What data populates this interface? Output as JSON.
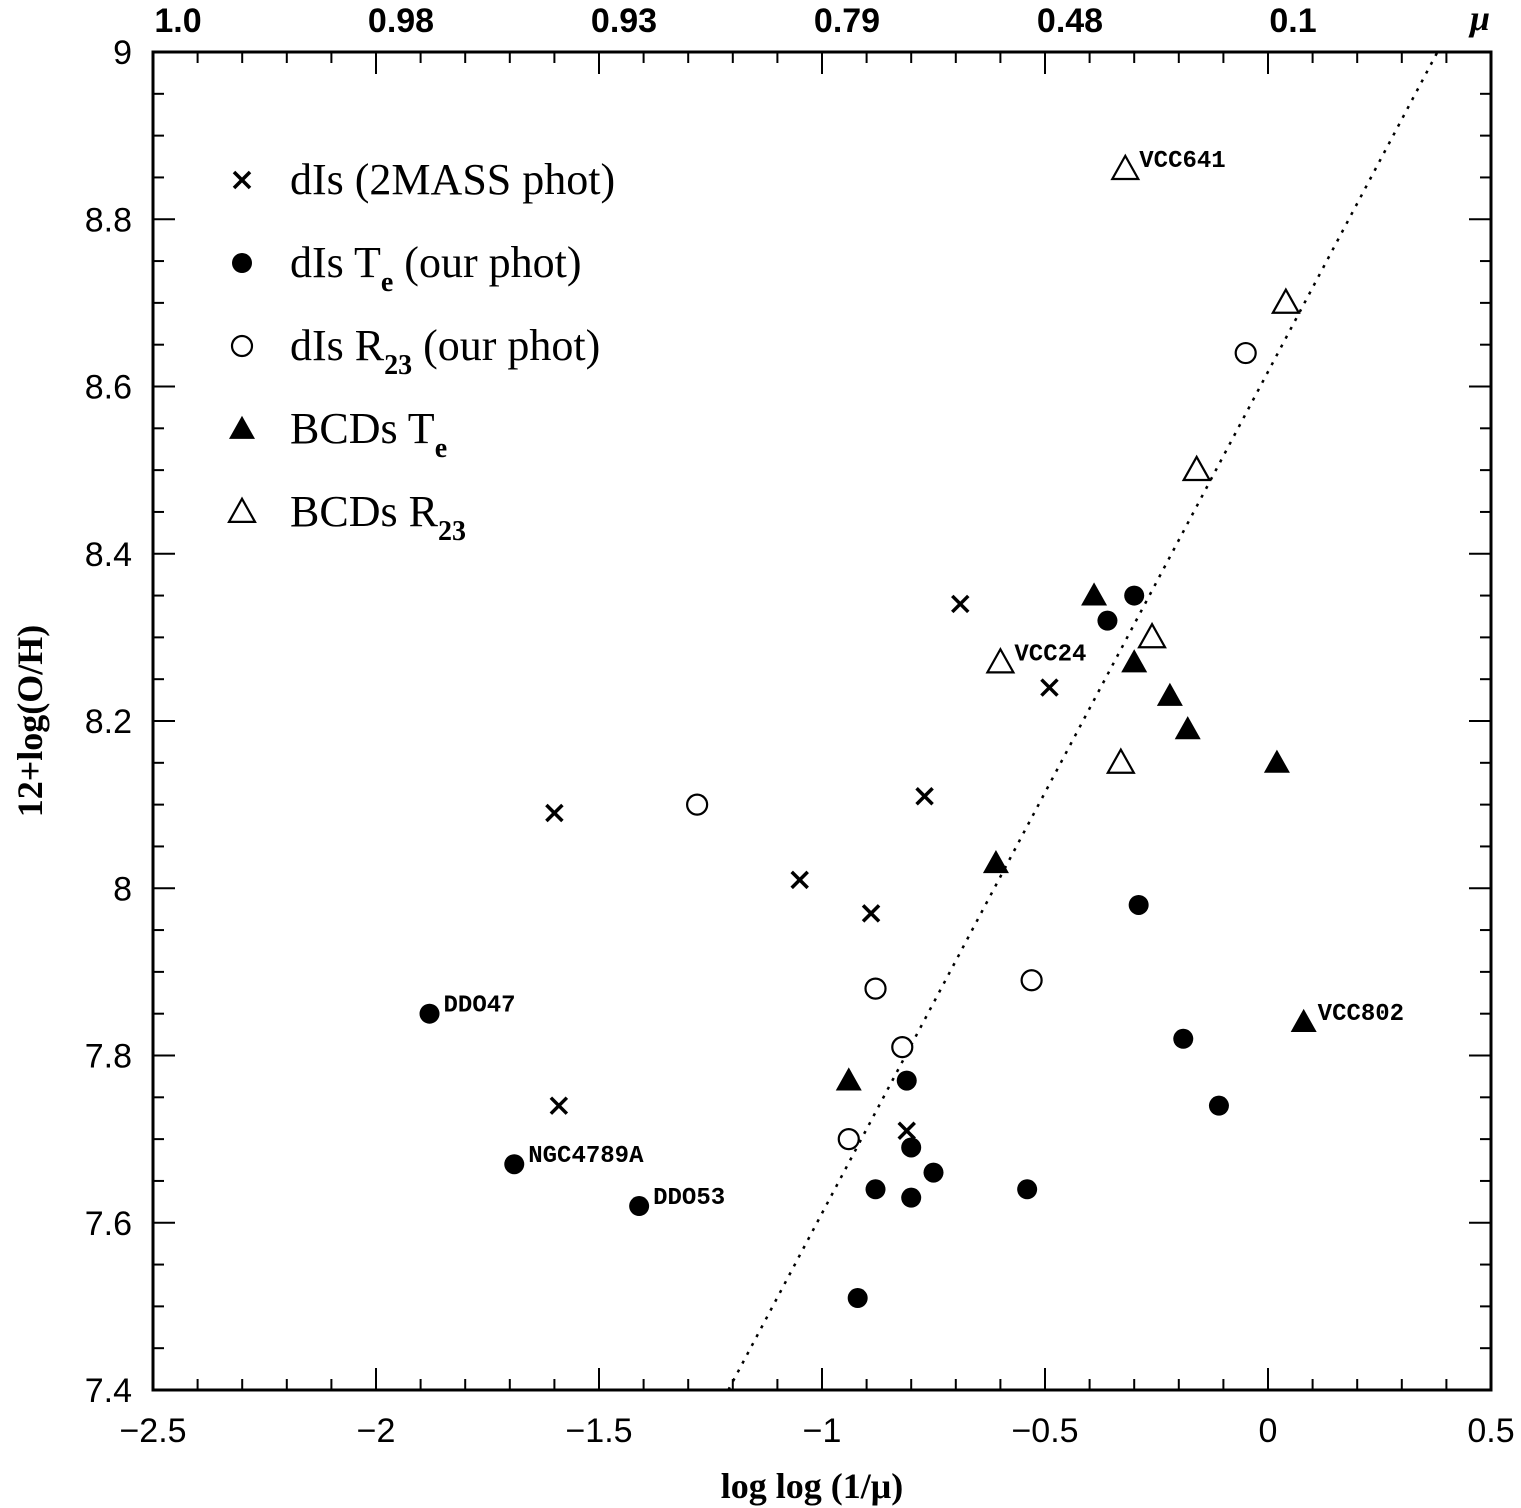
{
  "chart_data": {
    "type": "scatter",
    "xlabel": "log log (1/μ)",
    "ylabel": "12+log(O/H)",
    "xlim": [
      -2.5,
      0.5
    ],
    "ylim": [
      7.4,
      9.0
    ],
    "x_major_ticks": [
      -2.5,
      -2,
      -1.5,
      -1,
      -0.5,
      0,
      0.5
    ],
    "x_tick_labels": [
      "−2.5",
      "−2",
      "−1.5",
      "−1",
      "−0.5",
      "0",
      "0.5"
    ],
    "y_major_ticks": [
      7.4,
      7.6,
      7.8,
      8.0,
      8.2,
      8.4,
      8.6,
      8.8,
      9.0
    ],
    "y_tick_labels": [
      "7.4",
      "7.6",
      "7.8",
      "8",
      "8.2",
      "8.4",
      "8.6",
      "8.8",
      "9"
    ],
    "top_axis": {
      "label": "μ",
      "ticks": [
        {
          "x": -2.5,
          "label": "1.0"
        },
        {
          "x": -2.0,
          "label": "0.98"
        },
        {
          "x": -1.5,
          "label": "0.93"
        },
        {
          "x": -1.0,
          "label": "0.79"
        },
        {
          "x": -0.5,
          "label": "0.48"
        },
        {
          "x": 0.0,
          "label": "0.1"
        }
      ]
    },
    "legend": {
      "placement": "top-left",
      "entries": [
        {
          "marker": "cross",
          "text": "dIs (2MASS phot)",
          "sub": ""
        },
        {
          "marker": "filled-circle",
          "text": "dIs T",
          "sub": "e",
          "suffix": " (our phot)"
        },
        {
          "marker": "open-circle",
          "text": "dIs R",
          "sub": "23",
          "suffix": " (our phot)"
        },
        {
          "marker": "filled-triangle",
          "text": "BCDs T",
          "sub": "e",
          "suffix": ""
        },
        {
          "marker": "open-triangle",
          "text": "BCDs R",
          "sub": "23",
          "suffix": ""
        }
      ]
    },
    "series": [
      {
        "name": "dIs (2MASS phot)",
        "marker": "cross",
        "points": [
          [
            -1.6,
            8.09
          ],
          [
            -1.05,
            8.01
          ],
          [
            -0.89,
            7.97
          ],
          [
            -0.77,
            8.11
          ],
          [
            -0.69,
            8.34
          ],
          [
            -0.49,
            8.24
          ],
          [
            -1.59,
            7.74
          ],
          [
            -0.81,
            7.71
          ]
        ]
      },
      {
        "name": "dIs Te (our phot)",
        "marker": "filled-circle",
        "points": [
          [
            -1.88,
            7.85
          ],
          [
            -1.69,
            7.67
          ],
          [
            -1.41,
            7.62
          ],
          [
            -0.92,
            7.51
          ],
          [
            -0.88,
            7.64
          ],
          [
            -0.81,
            7.77
          ],
          [
            -0.8,
            7.69
          ],
          [
            -0.8,
            7.63
          ],
          [
            -0.75,
            7.66
          ],
          [
            -0.54,
            7.64
          ],
          [
            -0.36,
            8.32
          ],
          [
            -0.3,
            8.35
          ],
          [
            -0.29,
            7.98
          ],
          [
            -0.19,
            7.82
          ],
          [
            -0.11,
            7.74
          ]
        ]
      },
      {
        "name": "dIs R23 (our phot)",
        "marker": "open-circle",
        "points": [
          [
            -1.28,
            8.1
          ],
          [
            -0.88,
            7.88
          ],
          [
            -0.82,
            7.81
          ],
          [
            -0.94,
            7.7
          ],
          [
            -0.53,
            7.89
          ],
          [
            -0.05,
            8.64
          ]
        ]
      },
      {
        "name": "BCDs Te",
        "marker": "filled-triangle",
        "points": [
          [
            -0.94,
            7.77
          ],
          [
            -0.61,
            8.03
          ],
          [
            -0.39,
            8.35
          ],
          [
            -0.3,
            8.27
          ],
          [
            -0.22,
            8.23
          ],
          [
            -0.18,
            8.19
          ],
          [
            0.02,
            8.15
          ],
          [
            0.08,
            7.84
          ]
        ]
      },
      {
        "name": "BCDs R23",
        "marker": "open-triangle",
        "points": [
          [
            -0.32,
            8.86
          ],
          [
            0.04,
            8.7
          ],
          [
            -0.16,
            8.5
          ],
          [
            -0.26,
            8.3
          ],
          [
            -0.6,
            8.27
          ],
          [
            -0.33,
            8.15
          ]
        ]
      }
    ],
    "fit_line": {
      "style": "dotted",
      "from": [
        -1.21,
        7.4
      ],
      "to": [
        0.38,
        9.0
      ]
    },
    "annotations": [
      {
        "text": "VCC641",
        "x": -0.32,
        "y": 8.86
      },
      {
        "text": "VCC24",
        "x": -0.6,
        "y": 8.27
      },
      {
        "text": "DDO47",
        "x": -1.88,
        "y": 7.85
      },
      {
        "text": "NGC4789A",
        "x": -1.69,
        "y": 7.67
      },
      {
        "text": "DDO53",
        "x": -1.41,
        "y": 7.62
      },
      {
        "text": "VCC802",
        "x": 0.08,
        "y": 7.84
      }
    ]
  }
}
